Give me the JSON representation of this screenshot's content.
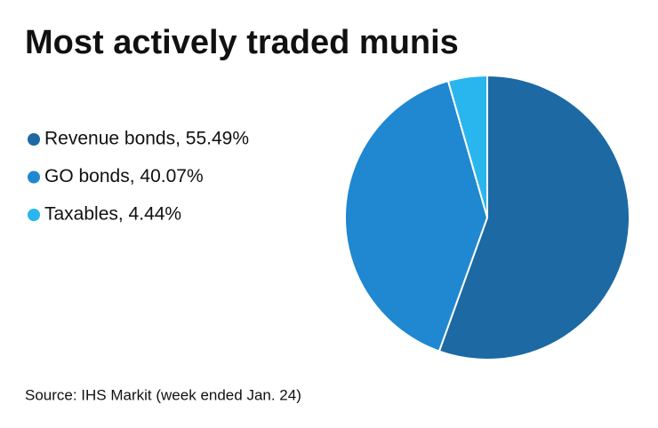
{
  "chart_data": {
    "type": "pie",
    "title": "Most actively traded munis",
    "categories": [
      "Revenue bonds, 55.49%",
      "GO bonds, 40.07%",
      "Taxables, 4.44%"
    ],
    "values": [
      55.49,
      40.07,
      4.44
    ],
    "colors": [
      "#1c69a3",
      "#1f88d0",
      "#29b6ee"
    ],
    "source": "Source: IHS Markit (week ended Jan. 24)"
  }
}
